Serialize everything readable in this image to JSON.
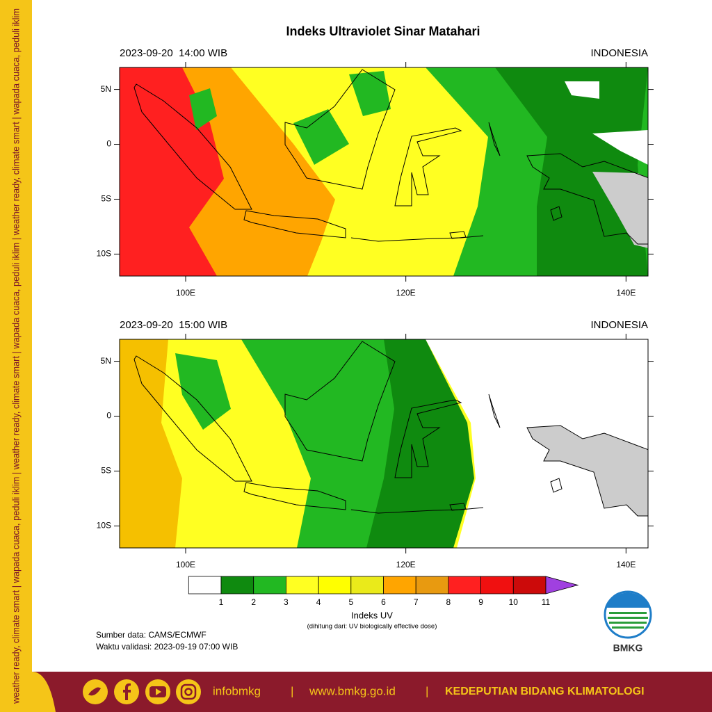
{
  "side_text": "weather ready, climate smart | wapada cuaca, peduli iklim | weather ready, climate smart | wapada cuaca, peduli iklim | weather ready, climate smart | wapada cuaca, peduli iklim",
  "title": "Indeks Ultraviolet Sinar Matahari",
  "panels": [
    {
      "time": "2023-09-20  14:00 WIB",
      "region": "INDONESIA",
      "xlim": [
        94,
        142
      ],
      "ylim": [
        -12,
        7
      ],
      "xticks": [
        {
          "value": 100,
          "label": "100E"
        },
        {
          "value": 120,
          "label": "120E"
        },
        {
          "value": 140,
          "label": "140E"
        }
      ],
      "yticks": [
        {
          "value": 5,
          "label": "5N"
        },
        0,
        {
          "value": -5,
          "label": "5S"
        },
        {
          "value": -10,
          "label": "10S"
        }
      ]
    },
    {
      "time": "2023-09-20  15:00 WIB",
      "region": "INDONESIA",
      "xlim": [
        94,
        142
      ],
      "ylim": [
        -12,
        7
      ],
      "xticks": [
        {
          "value": 100,
          "label": "100E"
        },
        {
          "value": 120,
          "label": "120E"
        },
        {
          "value": 140,
          "label": "140E"
        }
      ],
      "yticks": [
        {
          "value": 5,
          "label": "5N"
        },
        0,
        {
          "value": -5,
          "label": "5S"
        },
        {
          "value": -10,
          "label": "10S"
        }
      ]
    }
  ],
  "colorbar": {
    "ticks": [
      1,
      2,
      3,
      4,
      5,
      6,
      7,
      8,
      9,
      10,
      11
    ],
    "colors": [
      "#ffffff",
      "#0f8a0f",
      "#22b822",
      "#ffff22",
      "#ffff00",
      "#eaea1a",
      "#ffa500",
      "#e89a10",
      "#ff2020",
      "#f01010",
      "#cc0a0a"
    ],
    "extend_color": "#a040e0",
    "label": "Indeks UV",
    "note": "(dihitung dari: UV biologically effective dose)"
  },
  "source": "Sumber data: CAMS/ECMWF",
  "validity": "Waktu validasi: 2023-09-19 07:00 WIB",
  "logo_text": "BMKG",
  "footer": {
    "handle": "infobmkg",
    "separator": "|",
    "website": "www.bmkg.go.id",
    "department": "KEDEPUTIAN BIDANG KLIMATOLOGI"
  }
}
